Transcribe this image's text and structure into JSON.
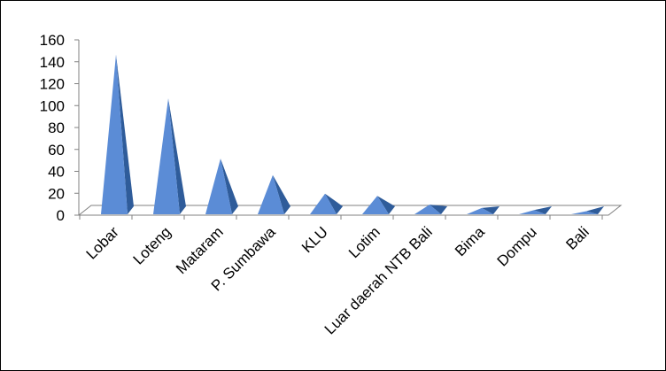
{
  "chart_data": {
    "type": "bar",
    "shape": "pyramid-3d",
    "categories": [
      "Lobar",
      "Loteng",
      "Mataram",
      "P. Sumbawa",
      "KLU",
      "Lotim",
      "Luar daerah NTB Bali",
      "Bima",
      "Dompu",
      "Bali"
    ],
    "values": [
      145,
      105,
      50,
      35,
      18,
      16,
      8,
      5,
      3,
      2
    ],
    "ylim": [
      0,
      160
    ],
    "yticks": [
      0,
      20,
      40,
      60,
      80,
      100,
      120,
      140,
      160
    ],
    "title": "",
    "xlabel": "",
    "ylabel": "",
    "grid": false,
    "legend": "none",
    "colors": {
      "front": "#5B8CD6",
      "side": "#2F5C9A",
      "axis": "#808080"
    }
  }
}
